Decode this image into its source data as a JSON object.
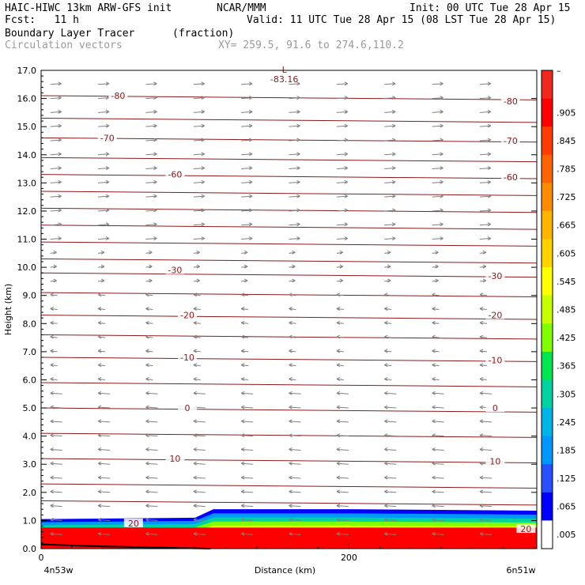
{
  "header": {
    "model": "HAIC-HIWC 13km ARW-GFS init",
    "org": "NCAR/MMM",
    "init": "Init: 00 UTC Tue 28 Apr 15",
    "fcst": "Fcst:   11 h",
    "valid": "Valid: 11 UTC Tue 28 Apr 15 (08 LST Tue 28 Apr 15)",
    "field": "Boundary Layer Tracer",
    "units": "(fraction)",
    "vectors": "Circulation vectors",
    "xy": "XY= 259.5, 91.6 to 274.6,110.2"
  },
  "chart_data": {
    "type": "heatmap",
    "title": "Boundary Layer Tracer",
    "xlabel": "Distance (km)",
    "ylabel": "Height (km)",
    "xlim": [
      0,
      322
    ],
    "ylim": [
      0,
      17
    ],
    "x_ticks": [
      {
        "value": 0,
        "label": "0"
      },
      {
        "value": 200,
        "label": "200"
      }
    ],
    "x_end_labels": {
      "left": "4n53w",
      "right": "6n51w"
    },
    "y_ticks": [
      "0.0",
      "1.0",
      "2.0",
      "3.0",
      "4.0",
      "5.0",
      "6.0",
      "7.0",
      "8.0",
      "9.0",
      "10.0",
      "11.0",
      "12.0",
      "13.0",
      "14.0",
      "15.0",
      "16.0",
      "17.0"
    ],
    "colorbar": {
      "labels": [
        "–",
        ".905",
        ".845",
        ".785",
        ".725",
        ".665",
        ".605",
        ".545",
        ".485",
        ".425",
        ".365",
        ".305",
        ".245",
        ".185",
        ".125",
        ".065",
        ".005"
      ],
      "colors": [
        "#f0281e",
        "#fe0000",
        "#ff3c00",
        "#ff6400",
        "#ff8c00",
        "#ffb400",
        "#ffd200",
        "#ffff00",
        "#c8ff00",
        "#80ff00",
        "#00e650",
        "#00d2a0",
        "#00b4e6",
        "#0096ff",
        "#2850ff",
        "#0000ff",
        "#ffffff"
      ]
    },
    "contours": {
      "quantity": "temperature (C)",
      "color": "#8b1a1a",
      "labels": [
        {
          "value": "-80",
          "x_km": 50,
          "height_km": 16.1
        },
        {
          "value": "-80",
          "x_km": 305,
          "height_km": 15.9
        },
        {
          "value": "-70",
          "x_km": 43,
          "height_km": 14.6
        },
        {
          "value": "-70",
          "x_km": 305,
          "height_km": 14.5
        },
        {
          "value": "-60",
          "x_km": 87,
          "height_km": 13.3
        },
        {
          "value": "-60",
          "x_km": 305,
          "height_km": 13.2
        },
        {
          "value": "-30",
          "x_km": 87,
          "height_km": 9.9
        },
        {
          "value": "-30",
          "x_km": 295,
          "height_km": 9.7
        },
        {
          "value": "-20",
          "x_km": 95,
          "height_km": 8.3
        },
        {
          "value": "-20",
          "x_km": 295,
          "height_km": 8.3
        },
        {
          "value": "-10",
          "x_km": 95,
          "height_km": 6.8
        },
        {
          "value": "-10",
          "x_km": 295,
          "height_km": 6.7
        },
        {
          "value": "0",
          "x_km": 95,
          "height_km": 5.0
        },
        {
          "value": "0",
          "x_km": 295,
          "height_km": 5.0
        },
        {
          "value": "10",
          "x_km": 87,
          "height_km": 3.2
        },
        {
          "value": "10",
          "x_km": 295,
          "height_km": 3.1
        },
        {
          "value": "20",
          "x_km": 60,
          "height_km": 0.9
        },
        {
          "value": "20",
          "x_km": 315,
          "height_km": 0.7
        }
      ],
      "line_heights_km": [
        16.1,
        15.3,
        14.6,
        13.9,
        13.3,
        12.7,
        12.1,
        11.5,
        10.9,
        10.3,
        9.8,
        9.1,
        8.3,
        7.6,
        6.8,
        5.9,
        5.0,
        4.1,
        3.2,
        2.3,
        1.7
      ]
    },
    "low_marker": {
      "symbol": "L",
      "value": "-83.16",
      "x_km": 158,
      "height_km": 16.8
    },
    "pbl_top_km": [
      [
        0,
        1.05
      ],
      [
        60,
        1.08
      ],
      [
        100,
        1.1
      ],
      [
        112,
        1.4
      ],
      [
        200,
        1.4
      ],
      [
        322,
        1.35
      ]
    ]
  }
}
